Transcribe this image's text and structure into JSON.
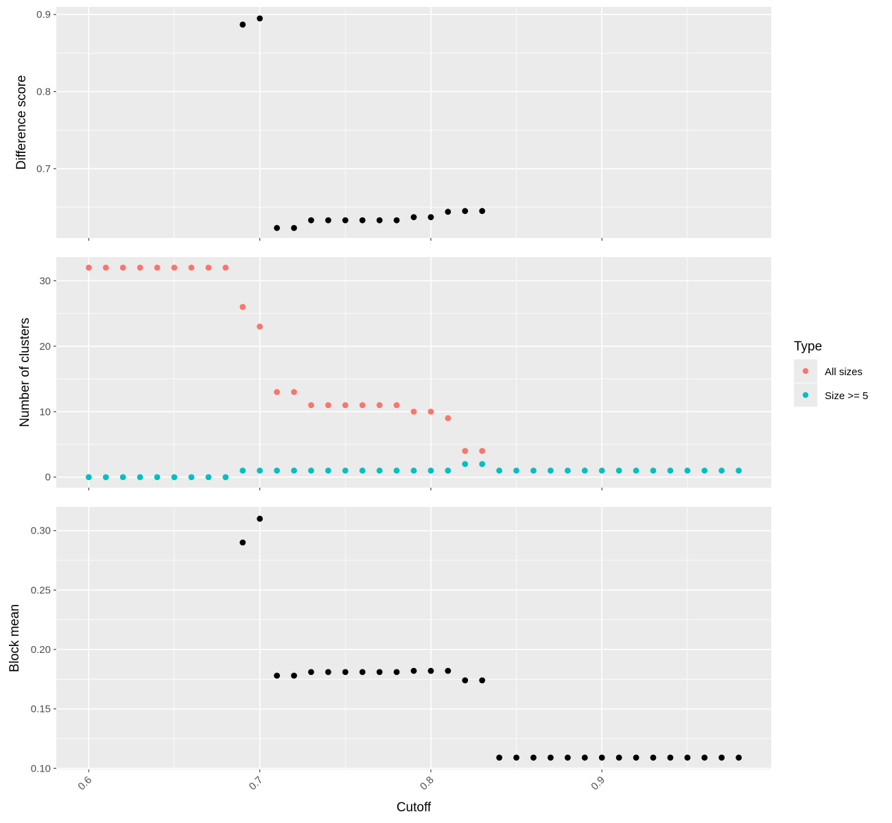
{
  "chart_data": {
    "type": "scatter",
    "shared_x": {
      "label": "Cutoff",
      "xlim": [
        0.581,
        0.999
      ],
      "ticks": [
        0.6,
        0.7,
        0.8,
        0.9
      ],
      "tick_labels": [
        "0.6",
        "0.7",
        "0.8",
        "0.9"
      ],
      "minor_ticks": [
        0.65,
        0.75,
        0.85,
        0.95
      ]
    },
    "legend": {
      "title": "Type",
      "placement": "right",
      "items": [
        {
          "label": "All sizes",
          "color": "#F8766D"
        },
        {
          "label": "Size >= 5",
          "color": "#00BFC4"
        }
      ]
    },
    "panels": [
      {
        "id": "difference",
        "ylabel": "Difference score",
        "ylim": [
          0.61,
          0.91
        ],
        "yticks": [
          0.7,
          0.8,
          0.9
        ],
        "ytick_labels": [
          "0.7",
          "0.8",
          "0.9"
        ],
        "yminor": [
          0.65,
          0.75,
          0.85
        ],
        "series": [
          {
            "name": "Difference score",
            "color": "#000000",
            "x": [
              0.69,
              0.7,
              0.71,
              0.72,
              0.73,
              0.74,
              0.75,
              0.76,
              0.77,
              0.78,
              0.79,
              0.8,
              0.81,
              0.82,
              0.83
            ],
            "y": [
              0.887,
              0.895,
              0.623,
              0.623,
              0.633,
              0.633,
              0.633,
              0.633,
              0.633,
              0.633,
              0.637,
              0.637,
              0.644,
              0.645,
              0.645
            ]
          }
        ]
      },
      {
        "id": "clusters",
        "ylabel": "Number of clusters",
        "ylim": [
          -1.6,
          33.6
        ],
        "yticks": [
          0,
          10,
          20,
          30
        ],
        "ytick_labels": [
          "0",
          "10",
          "20",
          "30"
        ],
        "yminor": [
          5,
          15,
          25
        ],
        "series": [
          {
            "name": "All sizes",
            "color": "#F8766D",
            "x": [
              0.6,
              0.61,
              0.62,
              0.63,
              0.64,
              0.65,
              0.66,
              0.67,
              0.68,
              0.69,
              0.7,
              0.71,
              0.72,
              0.73,
              0.74,
              0.75,
              0.76,
              0.77,
              0.78,
              0.79,
              0.8,
              0.81,
              0.82,
              0.83
            ],
            "y": [
              32,
              32,
              32,
              32,
              32,
              32,
              32,
              32,
              32,
              26,
              23,
              13,
              13,
              11,
              11,
              11,
              11,
              11,
              11,
              10,
              10,
              9,
              4,
              4
            ]
          },
          {
            "name": "Size >= 5",
            "color": "#00BFC4",
            "x": [
              0.6,
              0.61,
              0.62,
              0.63,
              0.64,
              0.65,
              0.66,
              0.67,
              0.68,
              0.69,
              0.7,
              0.71,
              0.72,
              0.73,
              0.74,
              0.75,
              0.76,
              0.77,
              0.78,
              0.79,
              0.8,
              0.81,
              0.82,
              0.83,
              0.84,
              0.85,
              0.86,
              0.87,
              0.88,
              0.89,
              0.9,
              0.91,
              0.92,
              0.93,
              0.94,
              0.95,
              0.96,
              0.97,
              0.98
            ],
            "y": [
              0,
              0,
              0,
              0,
              0,
              0,
              0,
              0,
              0,
              1,
              1,
              1,
              1,
              1,
              1,
              1,
              1,
              1,
              1,
              1,
              1,
              1,
              2,
              2,
              1,
              1,
              1,
              1,
              1,
              1,
              1,
              1,
              1,
              1,
              1,
              1,
              1,
              1,
              1
            ]
          }
        ]
      },
      {
        "id": "blockmean",
        "ylabel": "Block mean",
        "ylim": [
          0.099,
          0.32
        ],
        "yticks": [
          0.1,
          0.15,
          0.2,
          0.25,
          0.3
        ],
        "ytick_labels": [
          "0.10",
          "0.15",
          "0.20",
          "0.25",
          "0.30"
        ],
        "yminor": [
          0.125,
          0.175,
          0.225,
          0.275
        ],
        "series": [
          {
            "name": "Block mean",
            "color": "#000000",
            "x": [
              0.69,
              0.7,
              0.71,
              0.72,
              0.73,
              0.74,
              0.75,
              0.76,
              0.77,
              0.78,
              0.79,
              0.8,
              0.81,
              0.82,
              0.83,
              0.84,
              0.85,
              0.86,
              0.87,
              0.88,
              0.89,
              0.9,
              0.91,
              0.92,
              0.93,
              0.94,
              0.95,
              0.96,
              0.97,
              0.98
            ],
            "y": [
              0.29,
              0.31,
              0.178,
              0.178,
              0.181,
              0.181,
              0.181,
              0.181,
              0.181,
              0.181,
              0.182,
              0.182,
              0.182,
              0.174,
              0.174,
              0.109,
              0.109,
              0.109,
              0.109,
              0.109,
              0.109,
              0.109,
              0.109,
              0.109,
              0.109,
              0.109,
              0.109,
              0.109,
              0.109,
              0.109
            ]
          }
        ]
      }
    ]
  }
}
